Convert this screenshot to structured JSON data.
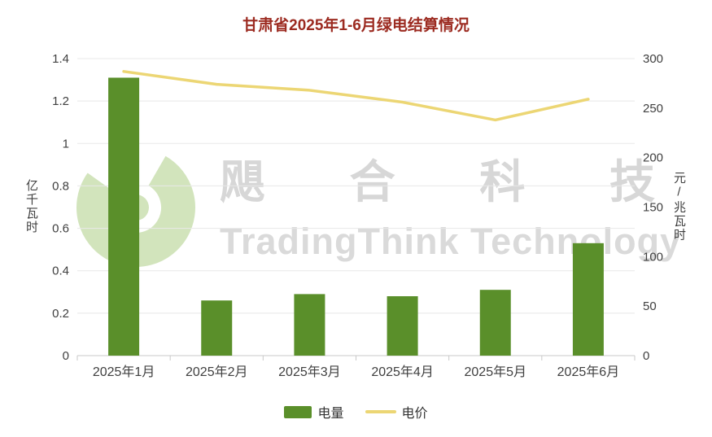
{
  "title": "甘肃省2025年1-6月绿电结算情况",
  "watermark": {
    "cn": "飓合科技",
    "en": "TradingThink Technology"
  },
  "colors": {
    "bar": "#5a8f2a",
    "line": "#ecd674",
    "title": "#9c2b21",
    "grid": "#e8e8e8",
    "axis_line": "#c9c9c9",
    "text": "#404040"
  },
  "chart_data": {
    "type": "bar",
    "subtype": "combo-bar-line",
    "categories": [
      "2025年1月",
      "2025年2月",
      "2025年3月",
      "2025年4月",
      "2025年5月",
      "2025年6月"
    ],
    "series": [
      {
        "name": "电量",
        "type": "bar",
        "axis": "left",
        "color": "#5a8f2a",
        "values": [
          1.31,
          0.26,
          0.29,
          0.28,
          0.31,
          0.53
        ]
      },
      {
        "name": "电价",
        "type": "line",
        "axis": "right",
        "color": "#ecd674",
        "values": [
          287,
          274,
          268,
          256,
          238,
          259
        ]
      }
    ],
    "left_axis": {
      "label": "亿千瓦时",
      "min": 0,
      "max": 1.4,
      "step": 0.2,
      "ticks": [
        "0",
        "0.2",
        "0.4",
        "0.6",
        "0.8",
        "1",
        "1.2",
        "1.4"
      ]
    },
    "right_axis": {
      "label": "元/兆瓦时",
      "min": 0,
      "max": 300,
      "step": 50,
      "ticks": [
        "0",
        "50",
        "100",
        "150",
        "200",
        "250",
        "300"
      ]
    },
    "grid": true,
    "legend_position": "bottom",
    "title": "甘肃省2025年1-6月绿电结算情况"
  }
}
